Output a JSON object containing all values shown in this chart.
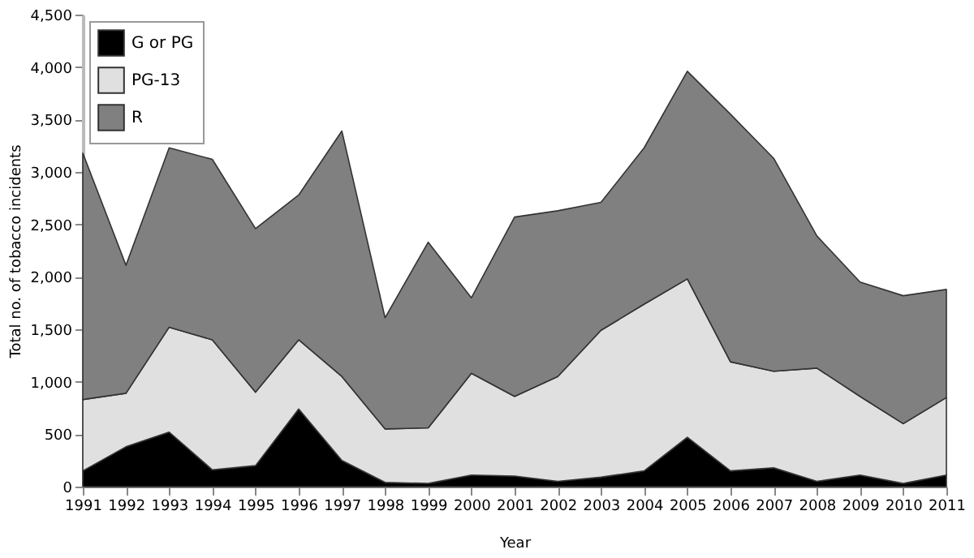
{
  "chart_data": {
    "type": "area",
    "stacked": true,
    "xlabel": "Year",
    "ylabel": "Total no. of tobacco incidents",
    "x": [
      1991,
      1992,
      1993,
      1994,
      1995,
      1996,
      1997,
      1998,
      1999,
      2000,
      2001,
      2002,
      2003,
      2004,
      2005,
      2006,
      2007,
      2008,
      2009,
      2010,
      2011
    ],
    "series": [
      {
        "name": "G or PG",
        "color": "#000000",
        "values": [
          150,
          380,
          520,
          160,
          200,
          740,
          250,
          40,
          30,
          110,
          100,
          50,
          90,
          150,
          470,
          150,
          180,
          50,
          110,
          30,
          110
        ]
      },
      {
        "name": "PG-13",
        "color": "#e0e0e0",
        "values": [
          680,
          510,
          1000,
          1240,
          700,
          660,
          800,
          510,
          530,
          970,
          760,
          1000,
          1400,
          1590,
          1510,
          1040,
          920,
          1080,
          750,
          570,
          740
        ]
      },
      {
        "name": "R",
        "color": "#808080",
        "values": [
          2350,
          1220,
          1710,
          1720,
          1560,
          1380,
          2340,
          1060,
          1770,
          720,
          1710,
          1580,
          1220,
          1490,
          1980,
          2360,
          2030,
          1260,
          1090,
          1220,
          1030
        ]
      }
    ],
    "xlim": [
      1991,
      2011
    ],
    "xticks": [
      1991,
      1992,
      1993,
      1994,
      1995,
      1996,
      1997,
      1998,
      1999,
      2000,
      2001,
      2002,
      2003,
      2004,
      2005,
      2006,
      2007,
      2008,
      2009,
      2010,
      2011
    ],
    "ylim": [
      0,
      4500
    ],
    "yticks": [
      0,
      500,
      {
        "value": 1000,
        "label": "1,000"
      },
      {
        "value": 1500,
        "label": "1,500"
      },
      {
        "value": 2000,
        "label": "2,000"
      },
      {
        "value": 2500,
        "label": "2,500"
      },
      {
        "value": 3000,
        "label": "3,000"
      },
      {
        "value": 3500,
        "label": "3,500"
      },
      {
        "value": 4000,
        "label": "4,000"
      },
      {
        "value": 4500,
        "label": "4,500"
      }
    ],
    "grid": false,
    "legend": "top left"
  }
}
